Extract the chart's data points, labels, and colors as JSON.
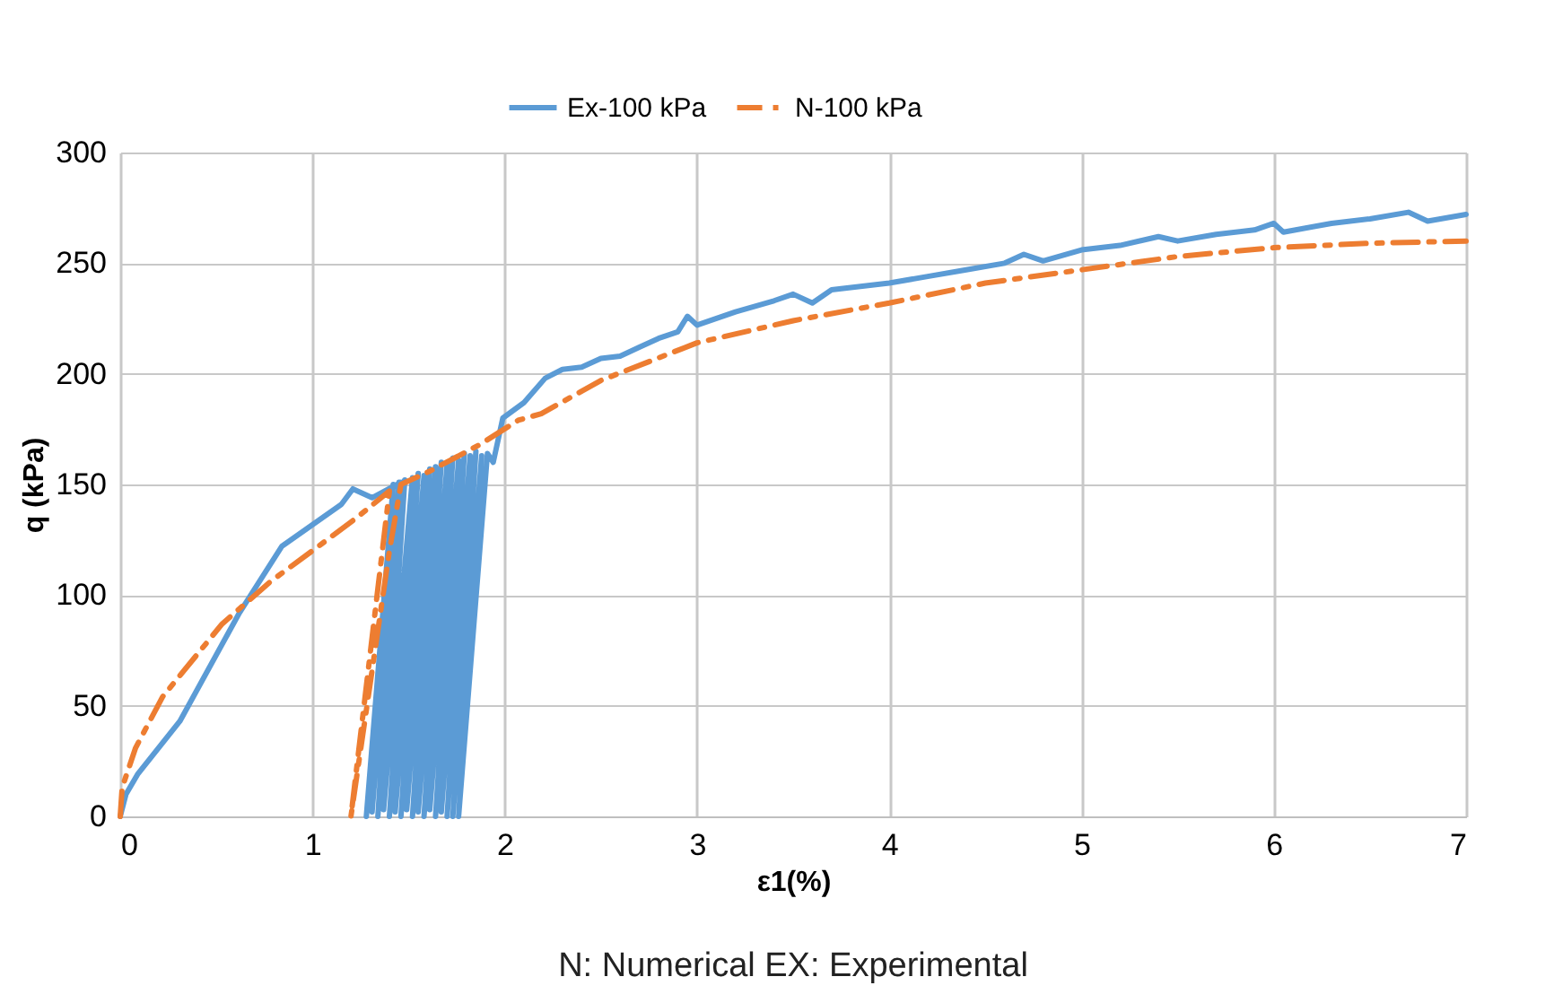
{
  "chart_data": {
    "type": "line",
    "xlabel": "ε1(%)",
    "ylabel": "q (kPa)",
    "annotations": [
      "N: Numerical       EX: Experimental"
    ],
    "xlim": [
      0,
      7
    ],
    "xticks": [
      0,
      1,
      2,
      3,
      4,
      5,
      6,
      7
    ],
    "ylim": [
      0,
      300
    ],
    "yticks": [
      0,
      50,
      100,
      150,
      200,
      250,
      300
    ],
    "grid": true,
    "legend": "top",
    "marker": "none",
    "series": [
      {
        "name": "Ex-100 kPa",
        "color": "#5b9bd5",
        "line_style": "solid",
        "x": [
          0,
          0.03,
          0.09,
          0.31,
          0.62,
          0.84,
          1.15,
          1.21,
          1.31,
          1.46,
          1.28,
          1.42,
          1.31,
          1.45,
          1.34,
          1.48,
          1.37,
          1.52,
          1.4,
          1.55,
          1.43,
          1.58,
          1.46,
          1.61,
          1.49,
          1.64,
          1.52,
          1.67,
          1.55,
          1.7,
          1.58,
          1.73,
          1.61,
          1.76,
          1.64,
          1.79,
          1.67,
          1.82,
          1.7,
          1.85,
          1.73,
          1.88,
          1.76,
          1.91,
          1.94,
          1.99,
          2.1,
          2.21,
          2.3,
          2.4,
          2.5,
          2.6,
          2.7,
          2.8,
          2.9,
          2.95,
          3.0,
          3.2,
          3.4,
          3.5,
          3.6,
          3.7,
          3.9,
          4.0,
          4.2,
          4.4,
          4.6,
          4.7,
          4.8,
          5.0,
          5.2,
          5.4,
          5.5,
          5.7,
          5.9,
          6.0,
          6.05,
          6.3,
          6.5,
          6.7,
          6.8,
          7.0
        ],
        "values": [
          0,
          10,
          19,
          43,
          92,
          122,
          141,
          148,
          144,
          151,
          0,
          150,
          2,
          151,
          0,
          152,
          3,
          153,
          0,
          155,
          2,
          154,
          0,
          157,
          3,
          158,
          0,
          160,
          2,
          159,
          0,
          162,
          3,
          161,
          0,
          164,
          2,
          163,
          0,
          165,
          0,
          163,
          0,
          164,
          160,
          180,
          187,
          198,
          202,
          203,
          207,
          208,
          212,
          216,
          219,
          226,
          222,
          228,
          233,
          236,
          232,
          238,
          240,
          241,
          244,
          247,
          250,
          254,
          251,
          256,
          258,
          262,
          260,
          263,
          265,
          268,
          264,
          268,
          270,
          273,
          269,
          272
        ]
      },
      {
        "name": "N-100 kPa",
        "color": "#ed7d31",
        "line_style": "dashed",
        "x": [
          0,
          0.01,
          0.08,
          0.22,
          0.53,
          0.78,
          1.03,
          1.23,
          1.4,
          1.2,
          1.3,
          1.4,
          1.46,
          1.61,
          1.87,
          2.07,
          2.19,
          2.5,
          3.0,
          3.5,
          4.0,
          4.5,
          5.0,
          5.5,
          6.0,
          6.5,
          7.0
        ],
        "values": [
          0,
          13,
          31,
          54,
          87,
          106,
          122,
          135,
          147,
          0,
          60,
          120,
          150,
          156,
          168,
          179,
          182,
          197,
          214,
          224,
          232,
          241,
          247,
          253,
          257,
          259,
          260
        ]
      }
    ]
  }
}
